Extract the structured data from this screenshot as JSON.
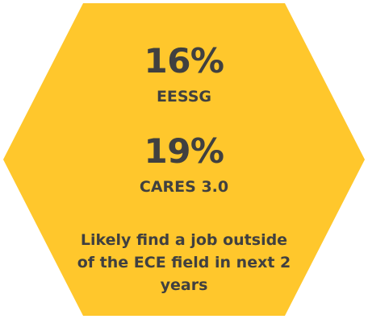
{
  "colors": {
    "hexagon_fill": "#FFC72C",
    "text": "#404040",
    "background": "#FFFFFF"
  },
  "stats": [
    {
      "value": "16%",
      "label": "EESSG"
    },
    {
      "value": "19%",
      "label": "CARES 3.0"
    }
  ],
  "description": "Likely find a job outside of the ECE field in next 2 years"
}
